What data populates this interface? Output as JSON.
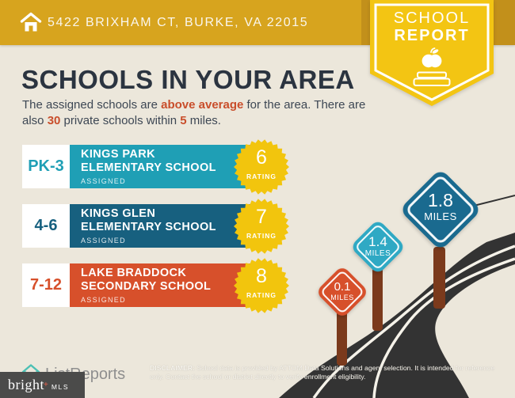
{
  "header": {
    "address": "5422 BRIXHAM CT, BURKE, VA 22015"
  },
  "badge": {
    "title_line1": "SCHOOL",
    "title_line2": "REPORT"
  },
  "main": {
    "title": "SCHOOLS IN YOUR AREA",
    "subtitle": {
      "line1": [
        "The assigned schools are ",
        "above average",
        " for the area. There are"
      ],
      "line2": [
        "also ",
        "30",
        " private schools within ",
        "5",
        " miles."
      ]
    }
  },
  "schools": [
    {
      "grades": "PK-3",
      "name_line1": "KINGS PARK",
      "name_line2": "ELEMENTARY SCHOOL",
      "status": "ASSIGNED",
      "rating": 6,
      "rating_label": "RATING",
      "color": "#1F9FB5"
    },
    {
      "grades": "4-6",
      "name_line1": "KINGS GLEN",
      "name_line2": "ELEMENTARY SCHOOL",
      "status": "ASSIGNED",
      "rating": 7,
      "rating_label": "RATING",
      "color": "#17607F"
    },
    {
      "grades": "7-12",
      "name_line1": "LAKE BRADDOCK",
      "name_line2": "SECONDARY SCHOOL",
      "status": "ASSIGNED",
      "rating": 8,
      "rating_label": "RATING",
      "color": "#D7502B"
    }
  ],
  "distance_signs": [
    {
      "value": "0.1",
      "unit": "MILES",
      "color": "#D7502B"
    },
    {
      "value": "1.4",
      "unit": "MILES",
      "color": "#2FA9C4"
    },
    {
      "value": "1.8",
      "unit": "MILES",
      "color": "#1A6A8F"
    }
  ],
  "footer": {
    "listreports": "ListReports",
    "brightmls_name": "bright",
    "brightmls_star": "+",
    "brightmls_suffix": "MLS",
    "disclaimer_label": "DISCLAIMER:",
    "disclaimer_text": " School data is provided by ATTOM Data Solutions and agent selection. It is intended for reference only. Contact the school or district directly to verify enrollment eligibility."
  },
  "colors": {
    "header_gold": "#D7A41E",
    "header_gold_dark": "#C2901B",
    "badge_gold": "#F3C513",
    "accent_orange": "#C94E2B",
    "row_teal": "#1F9FB5",
    "row_dark_blue": "#17607F",
    "row_orange_red": "#D7502B",
    "star_gold": "#F2C50D",
    "road_dark": "#333333",
    "post_brown": "#7B3A1C",
    "background": "#ECE7DB",
    "title_navy": "#2B3440"
  }
}
